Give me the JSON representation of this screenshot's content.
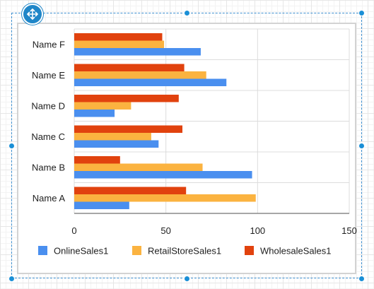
{
  "chart_data": {
    "type": "bar",
    "orientation": "horizontal",
    "categories": [
      "Name A",
      "Name B",
      "Name C",
      "Name D",
      "Name E",
      "Name F"
    ],
    "series": [
      {
        "name": "OnlineSales1",
        "color": "#4a8fef",
        "values": [
          30,
          97,
          46,
          22,
          83,
          69
        ]
      },
      {
        "name": "RetailStoreSales1",
        "color": "#fbb340",
        "values": [
          99,
          70,
          42,
          31,
          72,
          49
        ]
      },
      {
        "name": "WholesaleSales1",
        "color": "#e1420e",
        "values": [
          61,
          25,
          59,
          57,
          60,
          48
        ]
      }
    ],
    "xlim": [
      0,
      150
    ],
    "xticks": [
      "0",
      "50",
      "100",
      "150"
    ],
    "grid": true,
    "legend_position": "bottom"
  },
  "design_surface": {
    "move_icon": "four-way-arrow-icon",
    "handle_color": "#1a8fd6"
  }
}
